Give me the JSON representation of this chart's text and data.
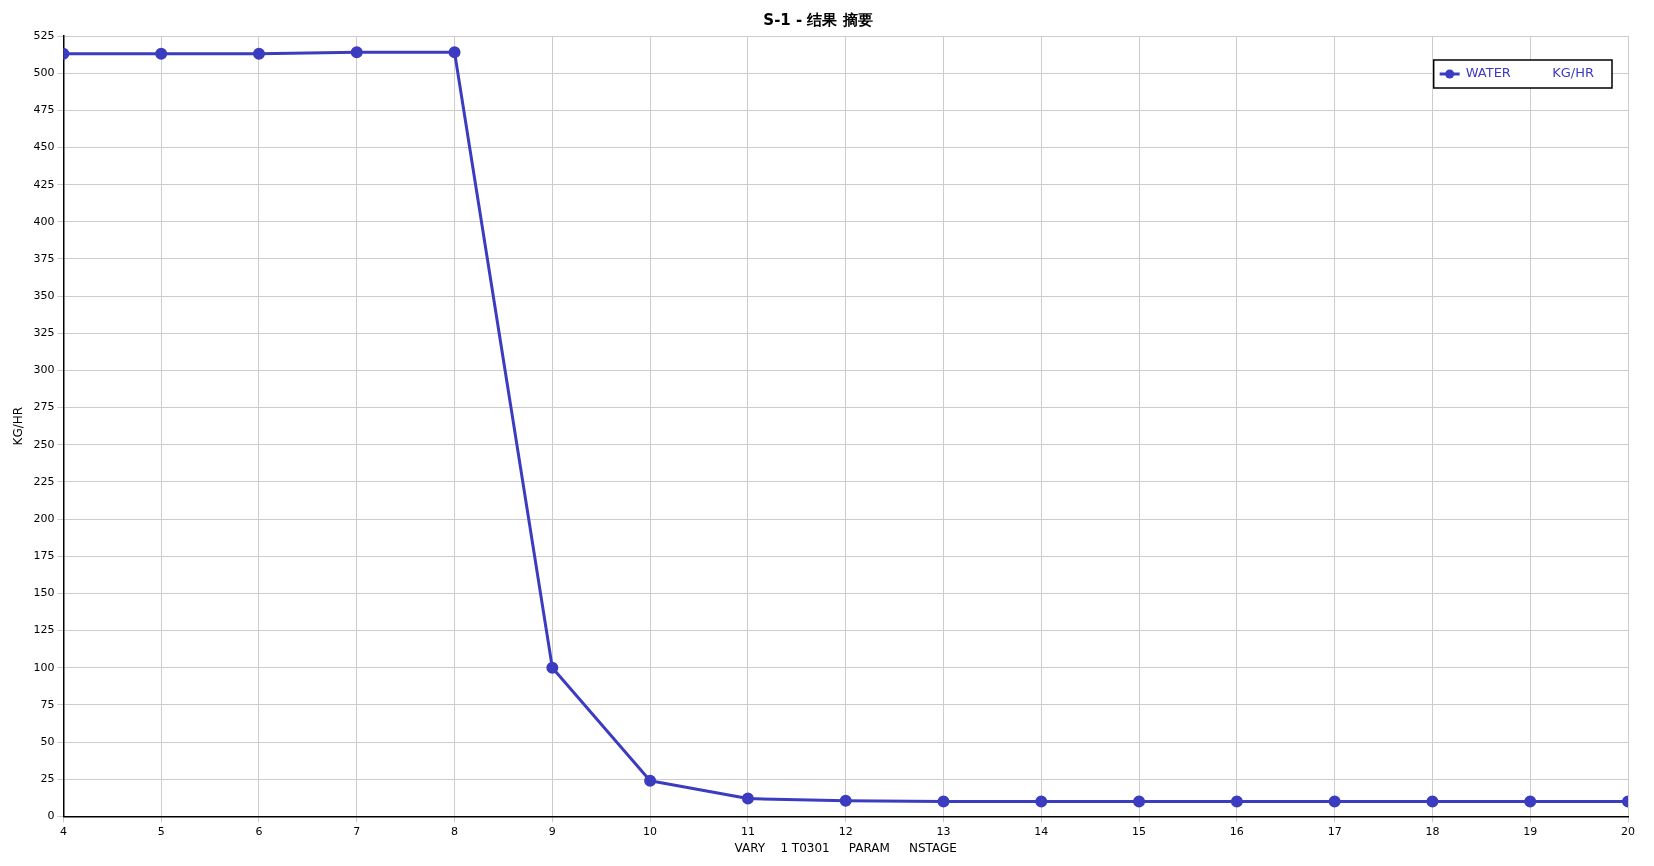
{
  "chart_data": {
    "type": "line",
    "title": "S-1 - 结果 摘要",
    "xlabel": "VARY    1 T0301     PARAM     NSTAGE",
    "ylabel": "KG/HR",
    "x": [
      4,
      5,
      6,
      7,
      8,
      9,
      10,
      11,
      12,
      13,
      14,
      15,
      16,
      17,
      18,
      19,
      20
    ],
    "series": [
      {
        "name": "WATER          KG/HR",
        "color": "#3c3cc0",
        "values": [
          513,
          513,
          513,
          514,
          514,
          100,
          24,
          12,
          10.5,
          10,
          10,
          10,
          10,
          10,
          10,
          10,
          10
        ]
      }
    ],
    "xlim": [
      4,
      20
    ],
    "xticks": [
      4,
      5,
      6,
      7,
      8,
      9,
      10,
      11,
      12,
      13,
      14,
      15,
      16,
      17,
      18,
      19,
      20
    ],
    "ylim": [
      0,
      525
    ],
    "yticks": [
      0,
      25,
      50,
      75,
      100,
      125,
      150,
      175,
      200,
      225,
      250,
      275,
      300,
      325,
      350,
      375,
      400,
      425,
      450,
      475,
      500,
      525
    ],
    "grid": true,
    "legend": "top right",
    "marker": "circle",
    "line_style": "solid"
  }
}
